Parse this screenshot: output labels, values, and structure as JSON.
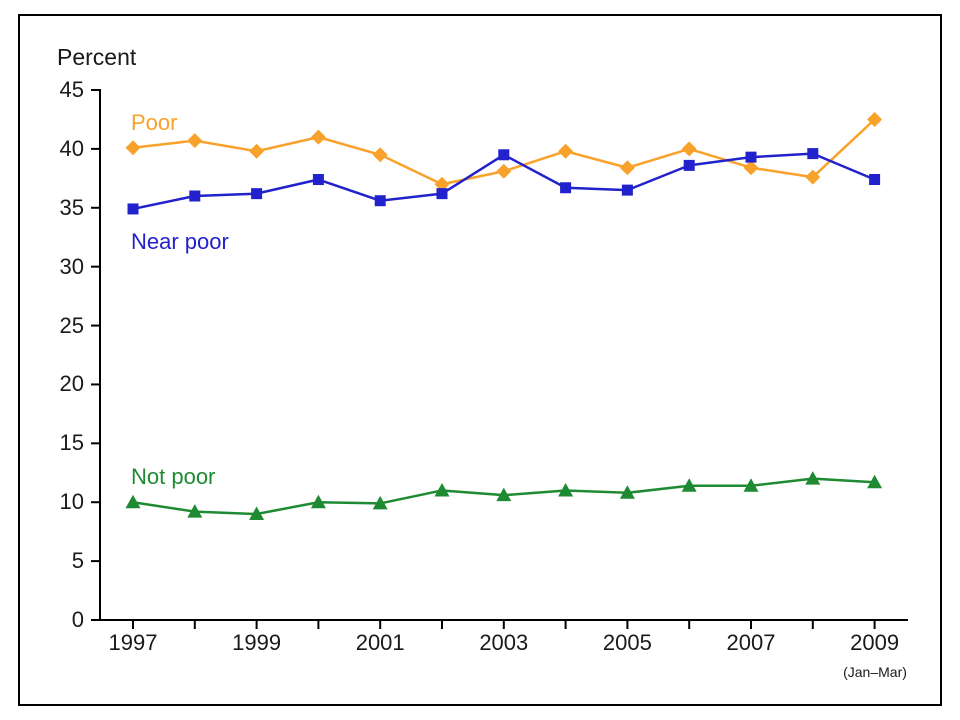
{
  "chart_data": {
    "type": "line",
    "title": "",
    "ylabel": "Percent",
    "xlabel": "",
    "x_note": "(Jan–Mar)",
    "x": [
      1997,
      1998,
      1999,
      2000,
      2001,
      2002,
      2003,
      2004,
      2005,
      2006,
      2007,
      2008,
      2009
    ],
    "x_tick_labels": [
      "1997",
      "1999",
      "2001",
      "2003",
      "2005",
      "2007",
      "2009"
    ],
    "ylim": [
      0,
      45
    ],
    "y_ticks": [
      0,
      5,
      10,
      15,
      20,
      25,
      30,
      35,
      40,
      45
    ],
    "grid": false,
    "legend_position": "inline-labels",
    "series": [
      {
        "name": "Poor",
        "color": "#F9A22B",
        "marker": "diamond",
        "values": [
          40.1,
          40.7,
          39.8,
          41.0,
          39.5,
          37.0,
          38.1,
          39.8,
          38.4,
          40.0,
          38.4,
          37.6,
          42.5
        ]
      },
      {
        "name": "Near poor",
        "color": "#2222CC",
        "marker": "square",
        "values": [
          34.9,
          36.0,
          36.2,
          37.4,
          35.6,
          36.2,
          39.5,
          36.7,
          36.5,
          38.6,
          39.3,
          39.6,
          37.4
        ]
      },
      {
        "name": "Not poor",
        "color": "#1E8B33",
        "marker": "triangle",
        "values": [
          10.0,
          9.2,
          9.0,
          10.0,
          9.9,
          11.0,
          10.6,
          11.0,
          10.8,
          11.4,
          11.4,
          12.0,
          11.7
        ]
      }
    ]
  }
}
